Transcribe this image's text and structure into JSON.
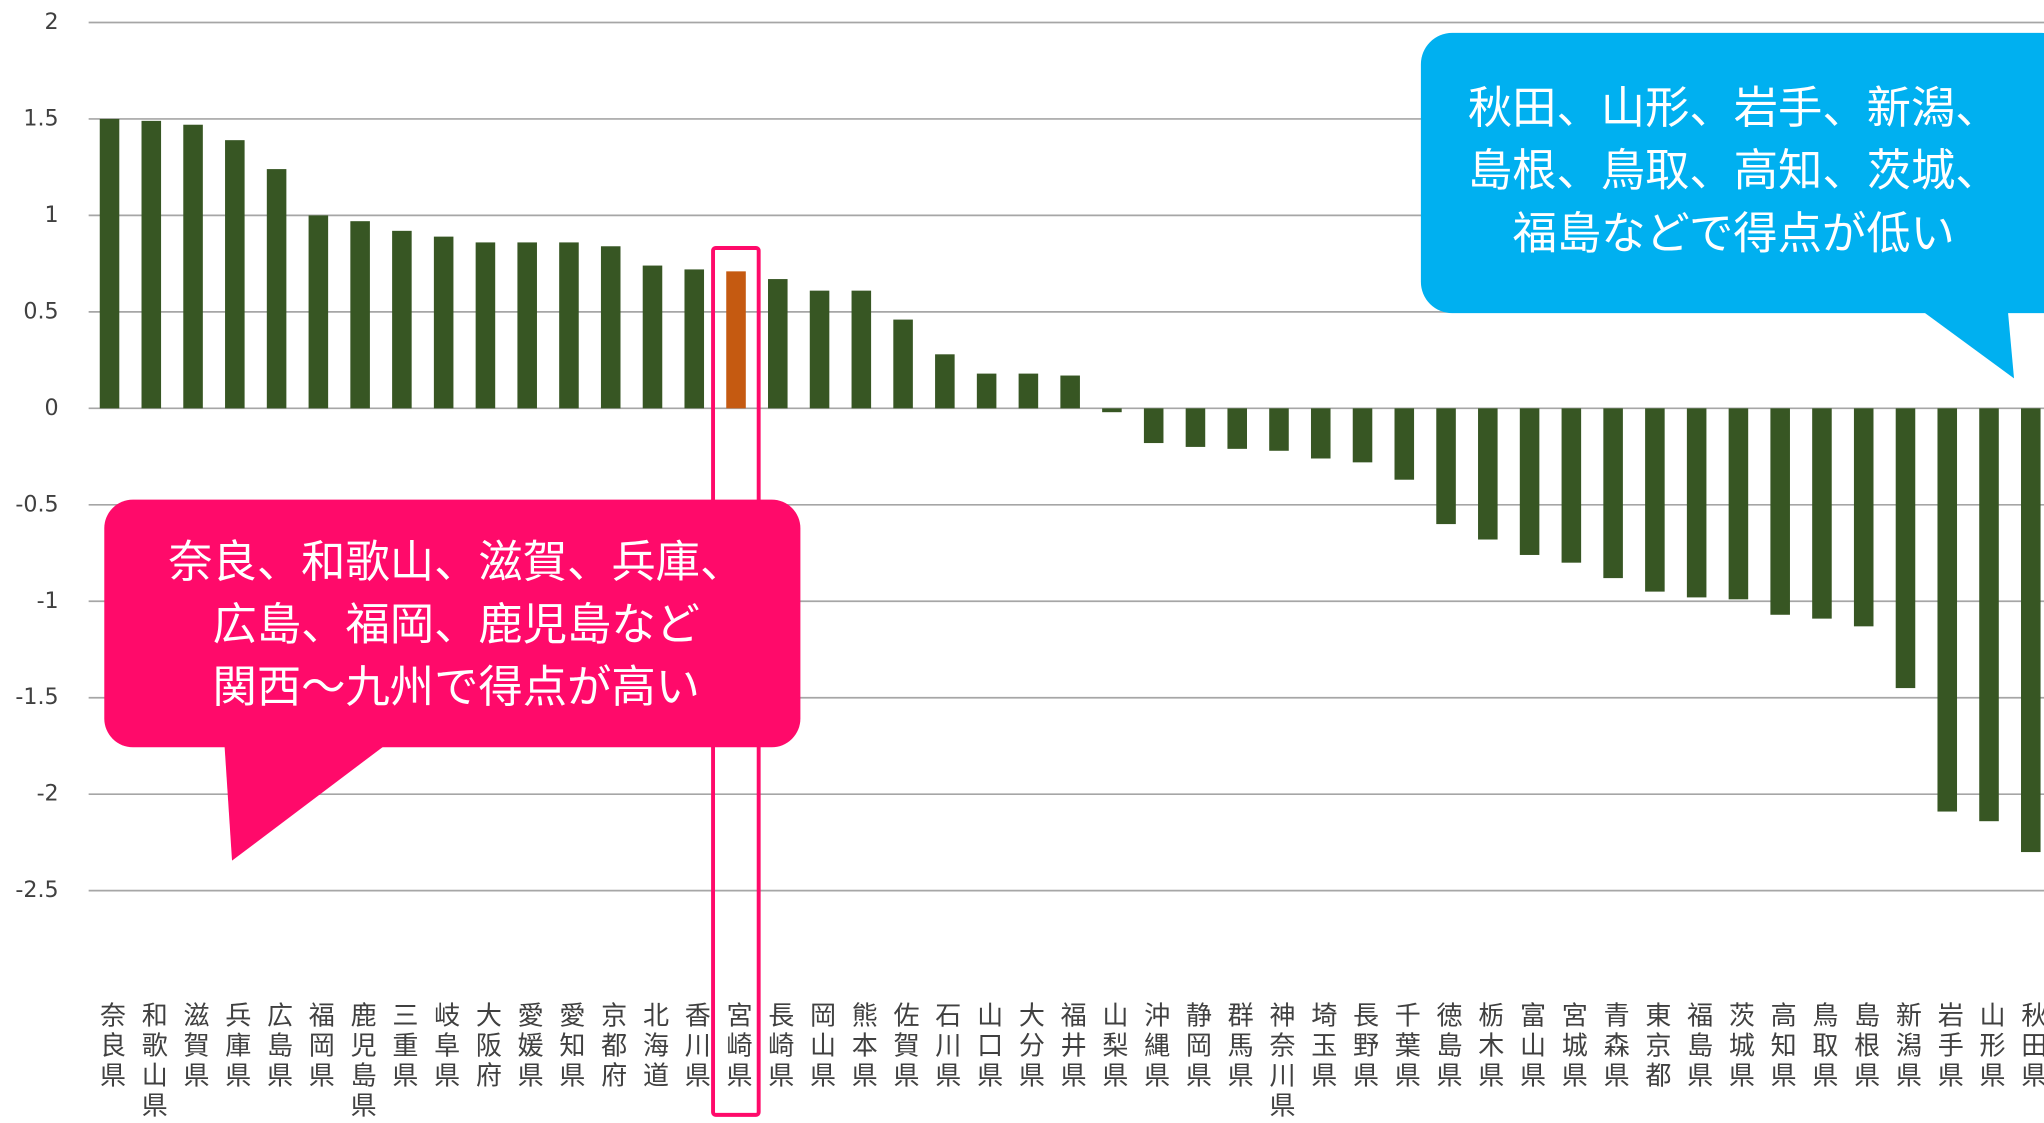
{
  "chart_data": {
    "type": "bar",
    "categories": [
      "奈良県",
      "和歌山県",
      "滋賀県",
      "兵庫県",
      "広島県",
      "福岡県",
      "鹿児島県",
      "三重県",
      "岐阜県",
      "大阪府",
      "愛媛県",
      "愛知県",
      "京都府",
      "北海道",
      "香川県",
      "宮崎県",
      "長崎県",
      "岡山県",
      "熊本県",
      "佐賀県",
      "石川県",
      "山口県",
      "大分県",
      "福井県",
      "山梨県",
      "沖縄県",
      "静岡県",
      "群馬県",
      "神奈川県",
      "埼玉県",
      "長野県",
      "千葉県",
      "徳島県",
      "栃木県",
      "富山県",
      "宮城県",
      "青森県",
      "東京都",
      "福島県",
      "茨城県",
      "高知県",
      "鳥取県",
      "島根県",
      "新潟県",
      "岩手県",
      "山形県",
      "秋田県"
    ],
    "values": [
      1.5,
      1.49,
      1.47,
      1.39,
      1.24,
      1.0,
      0.97,
      0.92,
      0.89,
      0.86,
      0.86,
      0.86,
      0.84,
      0.74,
      0.72,
      0.71,
      0.67,
      0.61,
      0.61,
      0.46,
      0.28,
      0.18,
      0.18,
      0.17,
      -0.02,
      -0.18,
      -0.2,
      -0.21,
      -0.22,
      -0.26,
      -0.28,
      -0.37,
      -0.6,
      -0.68,
      -0.76,
      -0.8,
      -0.88,
      -0.95,
      -0.98,
      -0.99,
      -1.07,
      -1.09,
      -1.13,
      -1.45,
      -2.09,
      -2.14,
      -2.3
    ],
    "color": "#375623",
    "highlight": {
      "index": 15,
      "color": "#c55a11"
    },
    "ylim": [
      -3,
      2
    ],
    "yticks": [
      2,
      1.5,
      1,
      0.5,
      0,
      -0.5,
      -1,
      -1.5,
      -2,
      -2.5
    ],
    "grid": true,
    "annotations": [
      {
        "lines": [
          "秋田、山形、岩手、新潟、",
          "島根、鳥取、高知、茨城、",
          "福島などで得点が低い"
        ],
        "color": "#00b0f0"
      },
      {
        "lines": [
          "奈良、和歌山、滋賀、兵庫、",
          "広島、福岡、鹿児島など",
          "関西～九州で得点が高い"
        ],
        "color": "#ff0a6a"
      }
    ]
  }
}
